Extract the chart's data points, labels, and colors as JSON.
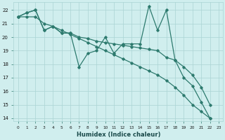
{
  "xlabel": "Humidex (Indice chaleur)",
  "x": [
    0,
    1,
    2,
    3,
    4,
    5,
    6,
    7,
    8,
    9,
    10,
    11,
    12,
    13,
    14,
    15,
    16,
    17,
    18,
    19,
    20,
    21,
    22
  ],
  "line_zigzag": [
    21.5,
    21.8,
    22.0,
    20.5,
    20.8,
    20.3,
    20.3,
    17.8,
    18.8,
    19.0,
    20.0,
    18.8,
    19.5,
    19.5,
    19.5,
    22.3,
    20.5,
    22.0,
    18.3,
    17.0,
    16.4,
    15.2,
    14.0
  ],
  "line_upper": [
    21.5,
    21.8,
    22.0,
    20.5,
    20.8,
    20.3,
    20.3,
    20.0,
    19.9,
    19.7,
    19.6,
    19.5,
    19.4,
    19.3,
    19.2,
    19.1,
    19.0,
    18.5,
    18.3,
    17.8,
    17.2,
    16.3,
    15.0
  ],
  "line_lower": [
    21.5,
    21.5,
    21.5,
    21.0,
    20.8,
    20.5,
    20.2,
    19.9,
    19.6,
    19.3,
    19.0,
    18.7,
    18.4,
    18.1,
    17.8,
    17.5,
    17.2,
    16.8,
    16.3,
    15.7,
    15.0,
    14.5,
    14.0
  ],
  "color": "#2d7a6e",
  "bg_color": "#d0eeee",
  "grid_color": "#aad4d4",
  "ylim": [
    13.8,
    22.6
  ],
  "yticks": [
    14,
    15,
    16,
    17,
    18,
    19,
    20,
    21,
    22
  ],
  "xticks": [
    0,
    1,
    2,
    3,
    4,
    5,
    6,
    7,
    8,
    9,
    10,
    11,
    12,
    13,
    14,
    15,
    16,
    17,
    18,
    19,
    20,
    21,
    22,
    23
  ]
}
